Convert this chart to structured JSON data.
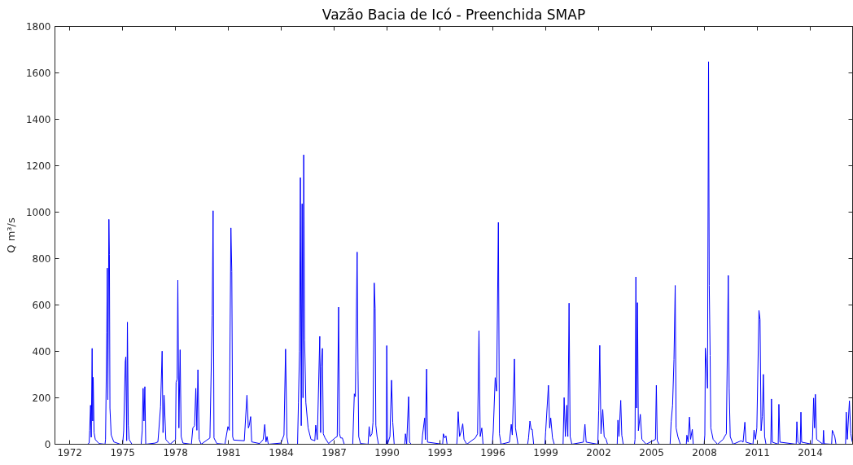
{
  "chart_data": {
    "type": "line",
    "title": "Vazão Bacia de Icó - Preenchida SMAP",
    "ylabel": "Q m³/s",
    "x": [
      1973.0,
      1973.1,
      1973.13,
      1973.18,
      1973.22,
      1973.27,
      1973.3,
      1973.33,
      1973.38,
      1973.45,
      1973.66,
      1974.0,
      1974.03,
      1974.1,
      1974.13,
      1974.16,
      1974.22,
      1974.25,
      1974.28,
      1974.35,
      1974.5,
      1974.87,
      1975.0,
      1975.06,
      1975.15,
      1975.18,
      1975.23,
      1975.27,
      1975.32,
      1975.37,
      1975.53,
      1976.05,
      1976.11,
      1976.16,
      1976.21,
      1976.26,
      1976.31,
      1976.84,
      1977.0,
      1977.05,
      1977.15,
      1977.24,
      1977.29,
      1977.35,
      1977.45,
      1977.69,
      1978.0,
      1978.03,
      1978.09,
      1978.13,
      1978.19,
      1978.26,
      1978.32,
      1978.42,
      1978.9,
      1978.98,
      1979.08,
      1979.15,
      1979.21,
      1979.27,
      1979.34,
      1979.45,
      1979.95,
      1980.08,
      1980.13,
      1980.18,
      1980.34,
      1980.8,
      1980.97,
      1981.05,
      1981.14,
      1981.19,
      1981.24,
      1981.29,
      1981.9,
      1981.97,
      1982.05,
      1982.13,
      1982.18,
      1982.26,
      1982.32,
      1982.77,
      1982.97,
      1983.06,
      1983.13,
      1983.19,
      1983.26,
      1983.98,
      1984.15,
      1984.24,
      1984.32,
      1984.39,
      1984.92,
      1984.97,
      1985.03,
      1985.08,
      1985.13,
      1985.18,
      1985.23,
      1985.27,
      1985.32,
      1985.39,
      1985.52,
      1985.68,
      1985.9,
      1985.95,
      1986.04,
      1986.18,
      1986.23,
      1986.26,
      1986.33,
      1986.38,
      1986.48,
      1986.68,
      1987.04,
      1987.17,
      1987.25,
      1987.3,
      1987.36,
      1987.46,
      1987.57,
      1988.05,
      1988.14,
      1988.2,
      1988.3,
      1988.35,
      1988.39,
      1988.49,
      1988.92,
      1988.98,
      1989.04,
      1989.14,
      1989.2,
      1989.27,
      1989.32,
      1989.36,
      1989.43,
      1989.51,
      1989.95,
      1989.98,
      1990.03,
      1990.16,
      1990.25,
      1990.32,
      1990.4,
      1991.0,
      1991.04,
      1991.11,
      1991.22,
      1991.27,
      1991.37,
      1991.97,
      1992.01,
      1992.13,
      1992.17,
      1992.24,
      1992.29,
      1993.15,
      1993.19,
      1993.27,
      1993.34,
      1993.4,
      1993.95,
      1993.98,
      1994.03,
      1994.11,
      1994.21,
      1994.29,
      1994.36,
      1994.52,
      1995.0,
      1995.13,
      1995.21,
      1995.28,
      1995.37,
      1995.44,
      1995.97,
      1996.02,
      1996.13,
      1996.21,
      1996.31,
      1996.37,
      1996.46,
      1996.94,
      1997.04,
      1997.1,
      1997.22,
      1997.28,
      1997.42,
      1997.97,
      1998.02,
      1998.1,
      1998.17,
      1998.23,
      1998.31,
      1998.95,
      1998.99,
      1999.15,
      1999.22,
      1999.28,
      1999.38,
      1999.48,
      1999.98,
      2000.04,
      2000.11,
      2000.19,
      2000.25,
      2000.32,
      2000.38,
      2000.48,
      2001.13,
      2001.22,
      2001.29,
      2001.95,
      2002.0,
      2002.06,
      2002.13,
      2002.23,
      2002.31,
      2002.42,
      2002.5,
      2003.05,
      2003.09,
      2003.15,
      2003.25,
      2003.31,
      2003.39,
      2004.03,
      2004.06,
      2004.11,
      2004.15,
      2004.2,
      2004.25,
      2004.36,
      2004.45,
      2004.69,
      2005.22,
      2005.27,
      2005.32,
      2005.42,
      2006.05,
      2006.11,
      2006.19,
      2006.27,
      2006.34,
      2006.39,
      2006.49,
      2006.63,
      2006.97,
      2007.0,
      2007.07,
      2007.15,
      2007.21,
      2007.31,
      2007.36,
      2007.98,
      2008.02,
      2008.05,
      2008.12,
      2008.17,
      2008.23,
      2008.27,
      2008.32,
      2008.36,
      2008.49,
      2008.74,
      2009.06,
      2009.14,
      2009.24,
      2009.35,
      2009.4,
      2009.46,
      2009.62,
      2010.08,
      2010.19,
      2010.29,
      2010.35,
      2010.75,
      2010.81,
      2010.89,
      2010.97,
      2011.09,
      2011.15,
      2011.21,
      2011.28,
      2011.34,
      2011.41,
      2011.49,
      2011.76,
      2011.8,
      2011.85,
      2012.18,
      2012.22,
      2012.28,
      2013.2,
      2013.24,
      2013.3,
      2013.43,
      2013.47,
      2013.51,
      2014.1,
      2014.13,
      2014.19,
      2014.24,
      2014.29,
      2014.36,
      2014.72,
      2014.75,
      2014.79,
      2015.21,
      2015.25,
      2015.33,
      2015.39,
      2015.46,
      2016.0,
      2016.04,
      2016.1,
      2016.22,
      2016.3,
      2016.38
    ],
    "series": [
      {
        "color": "#0000ff",
        "values": [
          0,
          5,
          60,
          168,
          30,
          413,
          100,
          288,
          50,
          20,
          3,
          0,
          20,
          480,
          759,
          192,
          969,
          818,
          156,
          40,
          10,
          0,
          0,
          58,
          356,
          376,
          15,
          526,
          82,
          20,
          0,
          0,
          58,
          241,
          100,
          248,
          0,
          5,
          10,
          58,
          162,
          401,
          50,
          211,
          20,
          0,
          20,
          266,
          281,
          707,
          70,
          407,
          33,
          5,
          0,
          70,
          80,
          241,
          60,
          321,
          21,
          0,
          27,
          554,
          1006,
          27,
          3,
          0,
          76,
          60,
          932,
          744,
          33,
          18,
          15,
          107,
          211,
          70,
          80,
          119,
          10,
          3,
          20,
          85,
          10,
          33,
          0,
          5,
          40,
          410,
          30,
          0,
          0,
          180,
          401,
          1149,
          80,
          1036,
          200,
          1247,
          450,
          180,
          70,
          21,
          15,
          82,
          20,
          465,
          50,
          334,
          413,
          45,
          27,
          3,
          27,
          33,
          591,
          45,
          27,
          27,
          0,
          0,
          217,
          205,
          828,
          315,
          33,
          3,
          0,
          76,
          33,
          45,
          94,
          695,
          585,
          82,
          33,
          0,
          0,
          425,
          2,
          33,
          276,
          95,
          0,
          0,
          45,
          2,
          205,
          9,
          0,
          0,
          40,
          113,
          20,
          324,
          9,
          0,
          45,
          27,
          36,
          0,
          0,
          33,
          140,
          33,
          58,
          88,
          21,
          0,
          27,
          45,
          489,
          33,
          70,
          0,
          0,
          58,
          287,
          229,
          956,
          45,
          0,
          9,
          86,
          40,
          367,
          70,
          0,
          0,
          27,
          100,
          64,
          64,
          0,
          0,
          52,
          254,
          70,
          113,
          27,
          0,
          0,
          201,
          33,
          168,
          33,
          608,
          33,
          0,
          9,
          86,
          9,
          0,
          144,
          426,
          45,
          150,
          33,
          21,
          0,
          0,
          104,
          33,
          189,
          39,
          0,
          0,
          21,
          721,
          156,
          610,
          58,
          129,
          21,
          0,
          21,
          254,
          15,
          0,
          0,
          97,
          168,
          365,
          684,
          70,
          33,
          0,
          0,
          39,
          9,
          117,
          21,
          64,
          0,
          0,
          40,
          414,
          328,
          241,
          1648,
          684,
          383,
          70,
          21,
          0,
          21,
          33,
          45,
          727,
          241,
          33,
          0,
          15,
          9,
          95,
          9,
          0,
          61,
          21,
          70,
          576,
          537,
          58,
          120,
          301,
          33,
          0,
          0,
          195,
          9,
          0,
          172,
          9,
          0,
          97,
          9,
          0,
          138,
          9,
          0,
          33,
          199,
          70,
          215,
          21,
          0,
          60,
          2,
          0,
          60,
          45,
          33,
          0,
          0,
          138,
          21,
          187,
          45,
          10
        ]
      }
    ],
    "xlim": [
      1971.16,
      2016.4
    ],
    "xticks": [
      1972,
      1975,
      1978,
      1981,
      1984,
      1987,
      1990,
      1993,
      1996,
      1999,
      2002,
      2005,
      2008,
      2011,
      2014
    ],
    "ylim": [
      0,
      1800
    ],
    "yticks": [
      0,
      200,
      400,
      600,
      800,
      1000,
      1200,
      1400,
      1600,
      1800
    ],
    "line_style": "solid"
  }
}
